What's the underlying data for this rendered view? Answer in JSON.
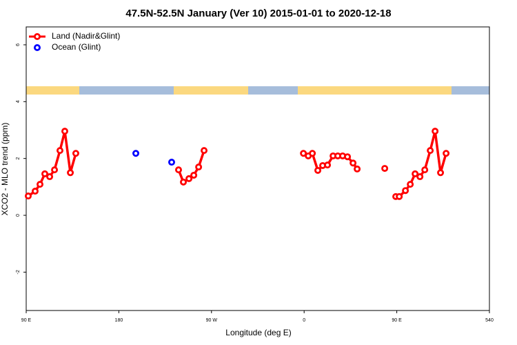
{
  "chart_data": {
    "type": "line",
    "title": "47.5N-52.5N January (Ver 10)   2015-01-01 to 2020-12-18",
    "xlabel": "Longitude (deg E)",
    "ylabel": "XCO2 - MLO trend (ppm)",
    "xlim": [
      90,
      540
    ],
    "ylim": [
      -3.35,
      6.63
    ],
    "xticks": [
      {
        "value": 90,
        "label": "90 E"
      },
      180,
      {
        "value": 270,
        "label": "90 W"
      },
      {
        "value": 360,
        "label": "0"
      },
      {
        "value": 450,
        "label": "90 E"
      },
      540
    ],
    "yticks": [
      -2,
      0,
      2,
      4,
      6
    ],
    "legend": "top-left",
    "series": [
      {
        "name": "Land (Nadir&Glint)",
        "color": "#ff0000",
        "mode": "lines+markers",
        "x": [
          92.0,
          98.7,
          103.4,
          108.1,
          112.8,
          117.5,
          122.8,
          127.5,
          132.9,
          138.2,
          null,
          238.0,
          242.7,
          248.1,
          252.8,
          257.5,
          262.8,
          null,
          359.3,
          364.0,
          368.0,
          373.3,
          378.0,
          382.7,
          388.1,
          392.7,
          397.4,
          402.1,
          407.5,
          411.5,
          null,
          438.3,
          null,
          449.0,
          452.4,
          458.4,
          463.1,
          467.8,
          472.5,
          477.2,
          482.5,
          487.2,
          492.5,
          497.9
        ],
        "values": [
          0.68,
          0.85,
          1.09,
          1.46,
          1.36,
          1.6,
          2.28,
          2.96,
          1.5,
          2.18,
          null,
          1.6,
          1.17,
          1.29,
          1.41,
          1.7,
          2.28,
          null,
          2.18,
          2.09,
          2.18,
          1.58,
          1.75,
          1.77,
          2.09,
          2.09,
          2.09,
          2.06,
          1.84,
          1.63,
          null,
          1.65,
          null,
          0.66,
          0.66,
          0.87,
          1.09,
          1.46,
          1.36,
          1.6,
          2.28,
          2.96,
          1.5,
          2.18
        ]
      },
      {
        "name": "Ocean (Glint)",
        "color": "#0000ff",
        "mode": "markers",
        "x": [
          196.5,
          231.3
        ],
        "values": [
          2.18,
          1.87
        ]
      }
    ]
  }
}
